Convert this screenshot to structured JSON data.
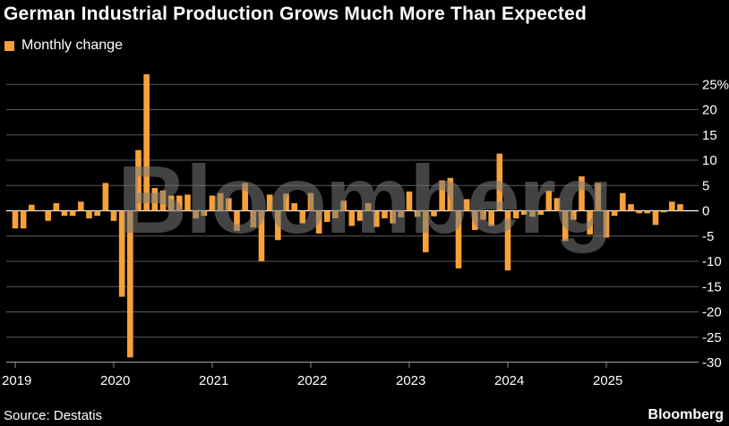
{
  "chart_data": {
    "type": "bar",
    "title": "German Industrial Production Grows Much More Than Expected",
    "legend": [
      "Monthly change"
    ],
    "legend_position": "top-left",
    "color": "#f7a13b",
    "ylim": [
      -32,
      27
    ],
    "yticks": [
      25,
      20,
      15,
      10,
      5,
      0,
      -5,
      -10,
      -15,
      -20,
      -25,
      -30
    ],
    "ytick_labels": [
      "25%",
      "20",
      "15",
      "10",
      "5",
      "0",
      "-5",
      "-10",
      "-15",
      "-20",
      "-25",
      "-30"
    ],
    "xtick_labels": [
      "2019",
      "2020",
      "2021",
      "2022",
      "2023",
      "2024",
      "2025"
    ],
    "start": "2019-01",
    "series": [
      {
        "name": "Monthly change",
        "values": [
          -3.5,
          -3.5,
          1.2,
          0.1,
          -2,
          1.5,
          -1,
          -1,
          1.8,
          -1.5,
          -1,
          5.5,
          -2,
          -17,
          -29,
          12,
          27,
          4.5,
          4,
          3,
          3,
          3.2,
          -1.5,
          -1,
          3,
          3.5,
          2.5,
          -4,
          5.5,
          -3.3,
          -10,
          3.2,
          -5.8,
          3.4,
          1.5,
          -2.5,
          3.5,
          -4.5,
          -2.2,
          -1.5,
          2,
          -3,
          -2,
          1.5,
          -3.2,
          -1.5,
          -2.5,
          -1.3,
          3.8,
          -1.2,
          -8.2,
          -1.1,
          6,
          6.5,
          -11.4,
          2.3,
          -3.8,
          -1.8,
          -3,
          11.3,
          -11.8,
          -1.5,
          -0.8,
          -1.2,
          -0.8,
          4,
          2.5,
          -6,
          -1.8,
          6.8,
          -4.7,
          5.5,
          -5.3,
          -1,
          3.5,
          1.3,
          -0.5,
          -0.5,
          -2.8,
          -0.3,
          1.8,
          1.3
        ]
      }
    ]
  },
  "source": "Source: Destatis",
  "brand": "Bloomberg",
  "watermark": "Bloomberg"
}
